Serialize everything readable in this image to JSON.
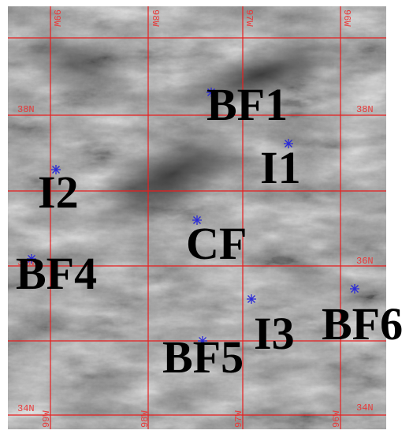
{
  "map": {
    "colors": {
      "grid": "#e81e1e",
      "marker": "#2a2ad8",
      "label": "#000000",
      "imagery_dark": "#2e2e2e",
      "imagery_light": "#d8d8d8"
    },
    "lon_labels": [
      "99W",
      "98W",
      "97W",
      "96W"
    ],
    "lat_labels": [
      "38N",
      "36N",
      "34N"
    ],
    "sites": [
      {
        "name": "BF1",
        "marker_icon": "asterisk-icon"
      },
      {
        "name": "I1",
        "marker_icon": "asterisk-icon"
      },
      {
        "name": "I2",
        "marker_icon": "asterisk-icon"
      },
      {
        "name": "CF",
        "marker_icon": "asterisk-icon"
      },
      {
        "name": "BF4",
        "marker_icon": "asterisk-icon"
      },
      {
        "name": "I3",
        "marker_icon": "asterisk-icon"
      },
      {
        "name": "BF6",
        "marker_icon": "asterisk-icon"
      },
      {
        "name": "BF5",
        "marker_icon": "asterisk-icon"
      }
    ]
  }
}
